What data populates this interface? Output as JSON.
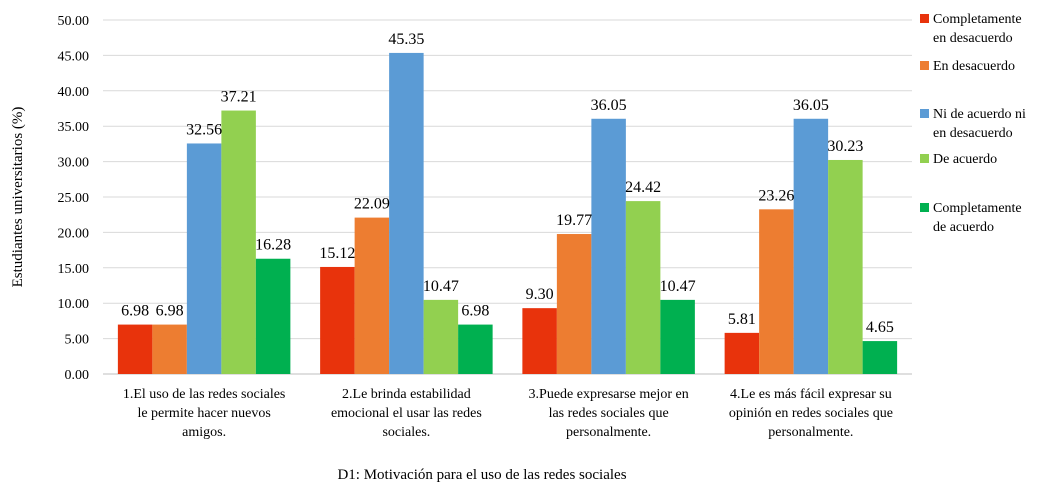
{
  "chart_data": {
    "type": "bar",
    "title": "",
    "xlabel": "D1: Motivación para el uso de las redes sociales",
    "ylabel": "Estudiantes universitarios (%)",
    "ylim": [
      0,
      50
    ],
    "ytick_step": 5,
    "ytick_decimals": 2,
    "grid": "horizontal",
    "legend_position": "right",
    "categories": [
      [
        "1.El uso de las redes sociales",
        "le permite hacer nuevos",
        "amigos."
      ],
      [
        "2.Le brinda estabilidad",
        "emocional el usar las redes",
        "sociales."
      ],
      [
        "3.Puede expresarse mejor en",
        "las redes sociales que",
        "personalmente."
      ],
      [
        "4.Le es más fácil expresar su",
        "opinión en redes sociales que",
        "personalmente."
      ]
    ],
    "series": [
      {
        "name": [
          "Completamente",
          "en desacuerdo"
        ],
        "color": "#e8330c",
        "values": [
          6.98,
          15.12,
          9.3,
          5.81
        ],
        "labels": [
          "6.98",
          "15.12",
          "9.30",
          "5.81"
        ]
      },
      {
        "name": [
          "En desacuerdo"
        ],
        "color": "#ed7d31",
        "values": [
          6.98,
          22.09,
          19.77,
          23.26
        ],
        "labels": [
          "6.98",
          "22.09",
          "19.77",
          "23.26"
        ]
      },
      {
        "name": [
          "Ni de acuerdo ni",
          "en desacuerdo"
        ],
        "color": "#5b9bd5",
        "values": [
          32.56,
          45.35,
          36.05,
          36.05
        ],
        "labels": [
          "32.56",
          "45.35",
          "36.05",
          "36.05"
        ]
      },
      {
        "name": [
          "De acuerdo"
        ],
        "color": "#92d050",
        "values": [
          37.21,
          10.47,
          24.42,
          30.23
        ],
        "labels": [
          "37.21",
          "10.47",
          "24.42",
          "30.23"
        ]
      },
      {
        "name": [
          "Completamente",
          "de acuerdo"
        ],
        "color": "#00b050",
        "values": [
          16.28,
          6.98,
          10.47,
          4.65
        ],
        "labels": [
          "16.28",
          "6.98",
          "10.47",
          "4.65"
        ]
      }
    ]
  }
}
